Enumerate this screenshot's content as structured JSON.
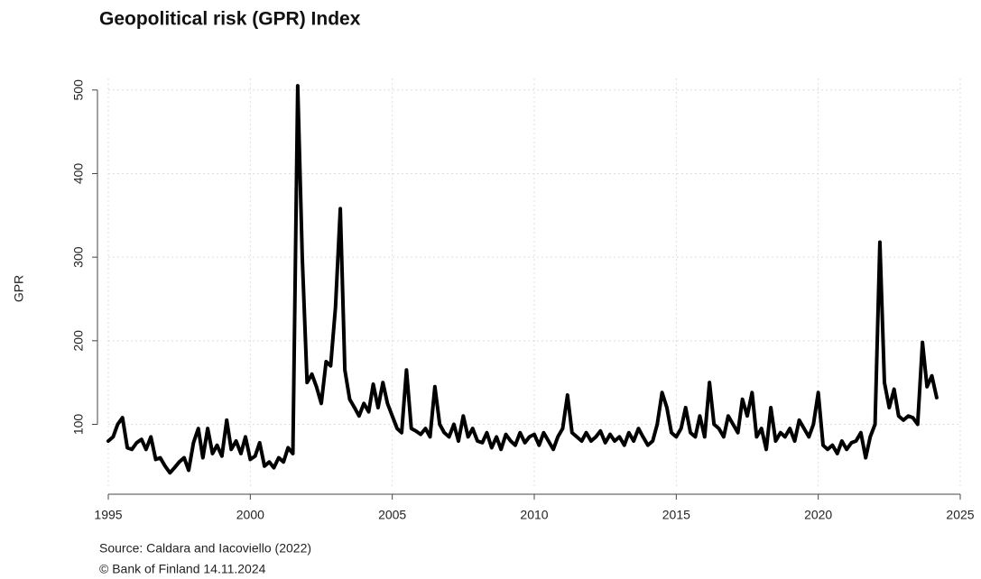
{
  "chart_data": {
    "type": "line",
    "title": "Geopolitical risk (GPR) Index",
    "y_label": "GPR",
    "source": "Source: Caldara and Iacoviello (2022)",
    "copyright": "© Bank of Finland 14.11.2024",
    "xlim": [
      1995,
      2025
    ],
    "xticks": [
      1995,
      2000,
      2005,
      2010,
      2015,
      2020,
      2025
    ],
    "ylim": [
      25,
      530
    ],
    "yticks": [
      100,
      200,
      300,
      400,
      500
    ],
    "grid": true,
    "series": [
      {
        "color": "#000000",
        "x": [
          1995,
          1995.17,
          1995.33,
          1995.5,
          1995.67,
          1995.83,
          1996,
          1996.17,
          1996.33,
          1996.5,
          1996.67,
          1996.83,
          1997,
          1997.17,
          1997.33,
          1997.5,
          1997.67,
          1997.83,
          1998,
          1998.17,
          1998.33,
          1998.5,
          1998.67,
          1998.83,
          1999,
          1999.17,
          1999.33,
          1999.5,
          1999.67,
          1999.83,
          2000,
          2000.17,
          2000.33,
          2000.5,
          2000.67,
          2000.83,
          2001,
          2001.17,
          2001.33,
          2001.5,
          2001.67,
          2001.83,
          2002,
          2002.17,
          2002.33,
          2002.5,
          2002.67,
          2002.83,
          2003,
          2003.17,
          2003.33,
          2003.5,
          2003.67,
          2003.83,
          2004,
          2004.17,
          2004.33,
          2004.5,
          2004.67,
          2004.83,
          2005,
          2005.17,
          2005.33,
          2005.5,
          2005.67,
          2005.83,
          2006,
          2006.17,
          2006.33,
          2006.5,
          2006.67,
          2006.83,
          2007,
          2007.17,
          2007.33,
          2007.5,
          2007.67,
          2007.83,
          2008,
          2008.17,
          2008.33,
          2008.5,
          2008.67,
          2008.83,
          2009,
          2009.17,
          2009.33,
          2009.5,
          2009.67,
          2009.83,
          2010,
          2010.17,
          2010.33,
          2010.5,
          2010.67,
          2010.83,
          2011,
          2011.17,
          2011.33,
          2011.5,
          2011.67,
          2011.83,
          2012,
          2012.17,
          2012.33,
          2012.5,
          2012.67,
          2012.83,
          2013,
          2013.17,
          2013.33,
          2013.5,
          2013.67,
          2013.83,
          2014,
          2014.17,
          2014.33,
          2014.5,
          2014.67,
          2014.83,
          2015,
          2015.17,
          2015.33,
          2015.5,
          2015.67,
          2015.83,
          2016,
          2016.17,
          2016.33,
          2016.5,
          2016.67,
          2016.83,
          2017,
          2017.17,
          2017.33,
          2017.5,
          2017.67,
          2017.83,
          2018,
          2018.17,
          2018.33,
          2018.5,
          2018.67,
          2018.83,
          2019,
          2019.17,
          2019.33,
          2019.5,
          2019.67,
          2019.83,
          2020,
          2020.17,
          2020.33,
          2020.5,
          2020.67,
          2020.83,
          2021,
          2021.17,
          2021.33,
          2021.5,
          2021.67,
          2021.83,
          2022,
          2022.17,
          2022.33,
          2022.5,
          2022.67,
          2022.83,
          2023,
          2023.17,
          2023.33,
          2023.5,
          2023.67,
          2023.83,
          2024,
          2024.17
        ],
        "values": [
          80,
          85,
          100,
          108,
          72,
          70,
          78,
          82,
          70,
          85,
          58,
          60,
          50,
          42,
          48,
          55,
          60,
          45,
          78,
          95,
          60,
          95,
          65,
          75,
          62,
          105,
          70,
          80,
          65,
          85,
          58,
          62,
          78,
          50,
          55,
          48,
          60,
          55,
          72,
          65,
          505,
          300,
          150,
          160,
          145,
          125,
          175,
          170,
          240,
          358,
          165,
          130,
          120,
          110,
          125,
          115,
          148,
          120,
          150,
          125,
          110,
          95,
          90,
          165,
          95,
          92,
          88,
          95,
          85,
          145,
          100,
          90,
          85,
          100,
          80,
          110,
          85,
          95,
          80,
          78,
          90,
          72,
          85,
          70,
          88,
          80,
          75,
          90,
          78,
          85,
          88,
          75,
          90,
          80,
          70,
          85,
          95,
          135,
          90,
          85,
          80,
          90,
          80,
          85,
          92,
          78,
          88,
          80,
          85,
          75,
          90,
          80,
          95,
          85,
          75,
          80,
          100,
          138,
          120,
          90,
          85,
          95,
          120,
          90,
          85,
          110,
          85,
          150,
          100,
          95,
          85,
          110,
          100,
          90,
          130,
          110,
          138,
          85,
          95,
          70,
          120,
          80,
          90,
          85,
          95,
          80,
          105,
          95,
          85,
          100,
          138,
          75,
          70,
          75,
          65,
          80,
          70,
          78,
          80,
          90,
          60,
          85,
          100,
          318,
          150,
          120,
          142,
          110,
          105,
          110,
          108,
          100,
          198,
          145,
          158,
          132
        ]
      }
    ]
  }
}
